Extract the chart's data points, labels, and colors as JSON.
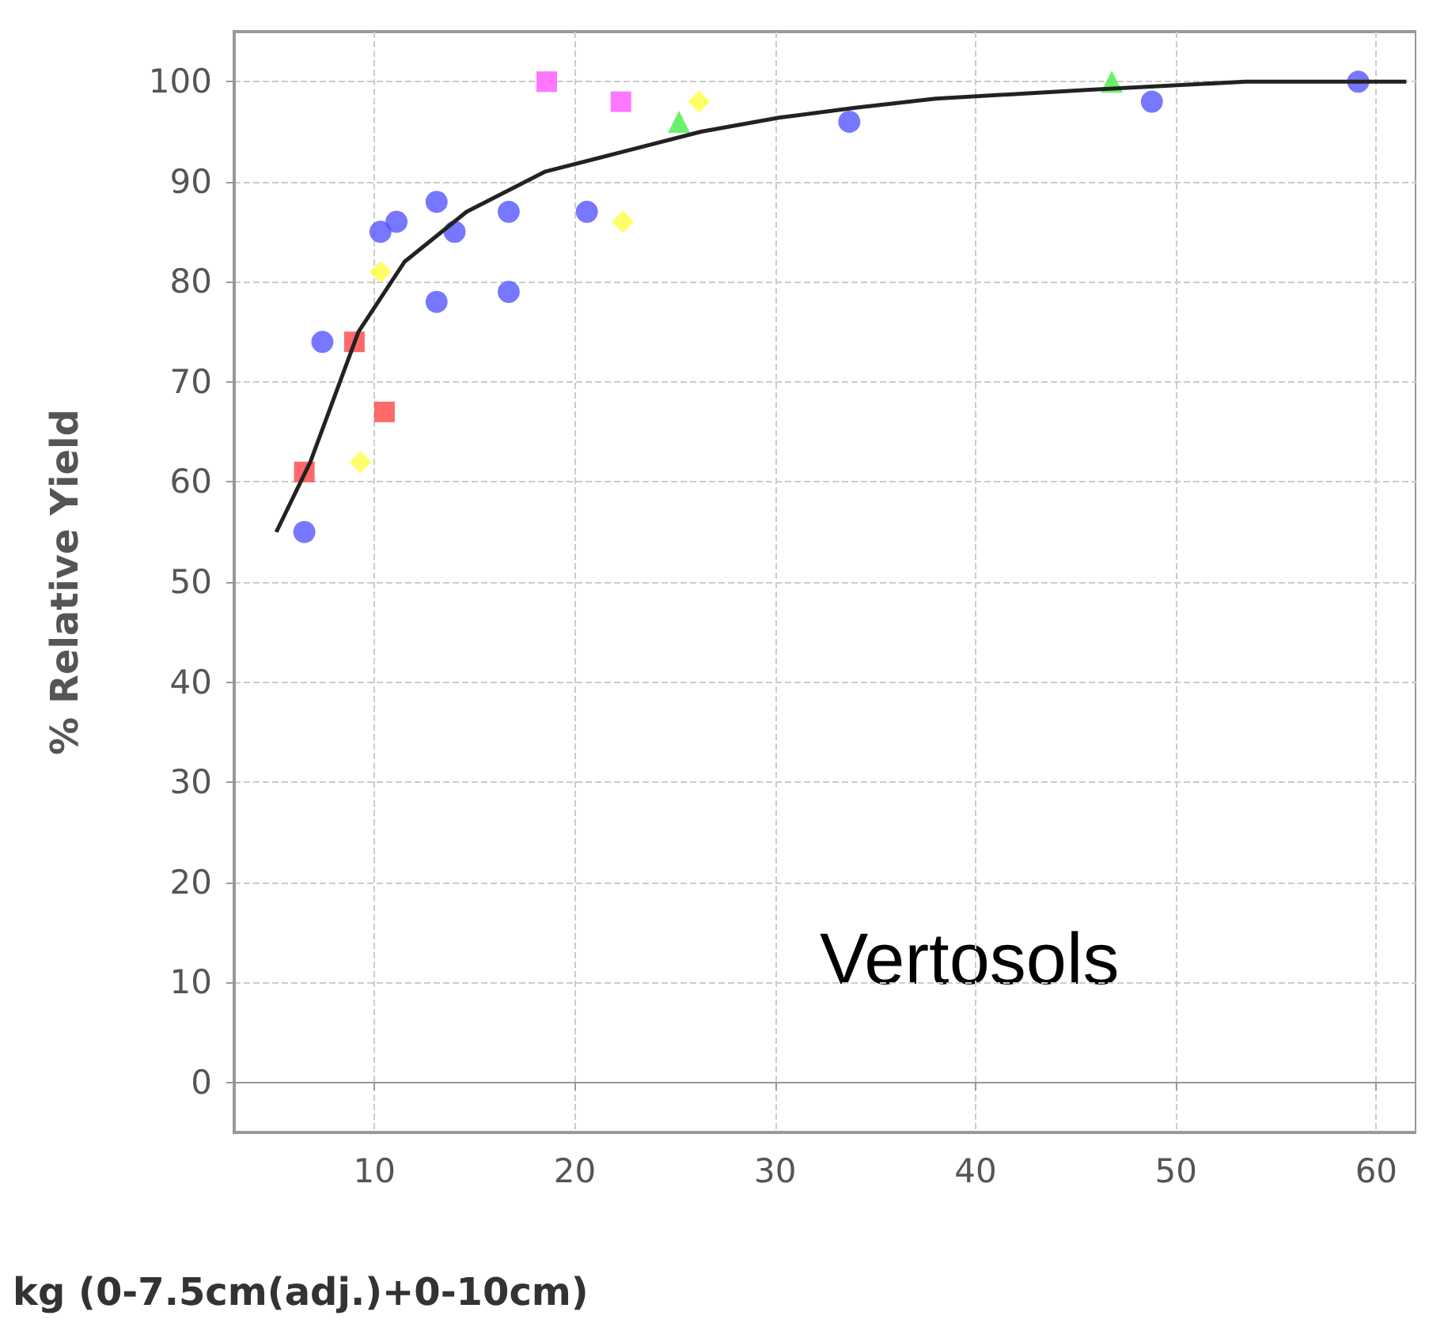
{
  "chart_data": {
    "type": "scatter",
    "xlabel": "kg (0-7.5cm(adj.)+0-10cm)",
    "ylabel": "% Relative Yield",
    "annotations": [
      "Vertosols"
    ],
    "xlim": [
      3,
      62
    ],
    "xticks": [
      10,
      20,
      30,
      40,
      50,
      60
    ],
    "ylim": [
      -5,
      105
    ],
    "yticks": [
      0,
      10,
      20,
      30,
      40,
      50,
      60,
      70,
      80,
      90,
      100
    ],
    "grid": true,
    "series": [
      {
        "color": "#5555ff",
        "marker": "circle",
        "x": [
          6.5,
          7.4,
          10.3,
          11.1,
          13.1,
          14,
          13.1,
          16.7,
          16.7,
          20.6,
          33.7,
          48.8,
          59.1
        ],
        "values": [
          55,
          74,
          85,
          86,
          88,
          85,
          78,
          87,
          79,
          87,
          96,
          98,
          100
        ]
      },
      {
        "color": "#ff4444",
        "marker": "square",
        "x": [
          6.5,
          9,
          10.5
        ],
        "values": [
          61,
          74,
          67
        ]
      },
      {
        "color": "#ffff44",
        "marker": "diamond",
        "x": [
          10.3,
          9.3,
          22.4,
          26.2
        ],
        "values": [
          81,
          62,
          86,
          98
        ]
      },
      {
        "color": "#ff55ff",
        "marker": "square",
        "x": [
          18.6,
          22.3
        ],
        "values": [
          100,
          98
        ]
      },
      {
        "color": "#44ee44",
        "marker": "triangle",
        "x": [
          25.2,
          46.8
        ],
        "values": [
          96,
          100
        ]
      },
      {
        "type": "line",
        "color": "#222222",
        "marker": "none",
        "x": [
          5.1,
          6.8,
          9.2,
          11.5,
          14.6,
          18.5,
          22.4,
          26.3,
          30.2,
          34,
          38,
          45.7,
          53.5,
          61.5
        ],
        "values": [
          55,
          62,
          75,
          82,
          87,
          91,
          93,
          95,
          96.4,
          97.4,
          98.3,
          99.2,
          100,
          100
        ]
      }
    ]
  }
}
